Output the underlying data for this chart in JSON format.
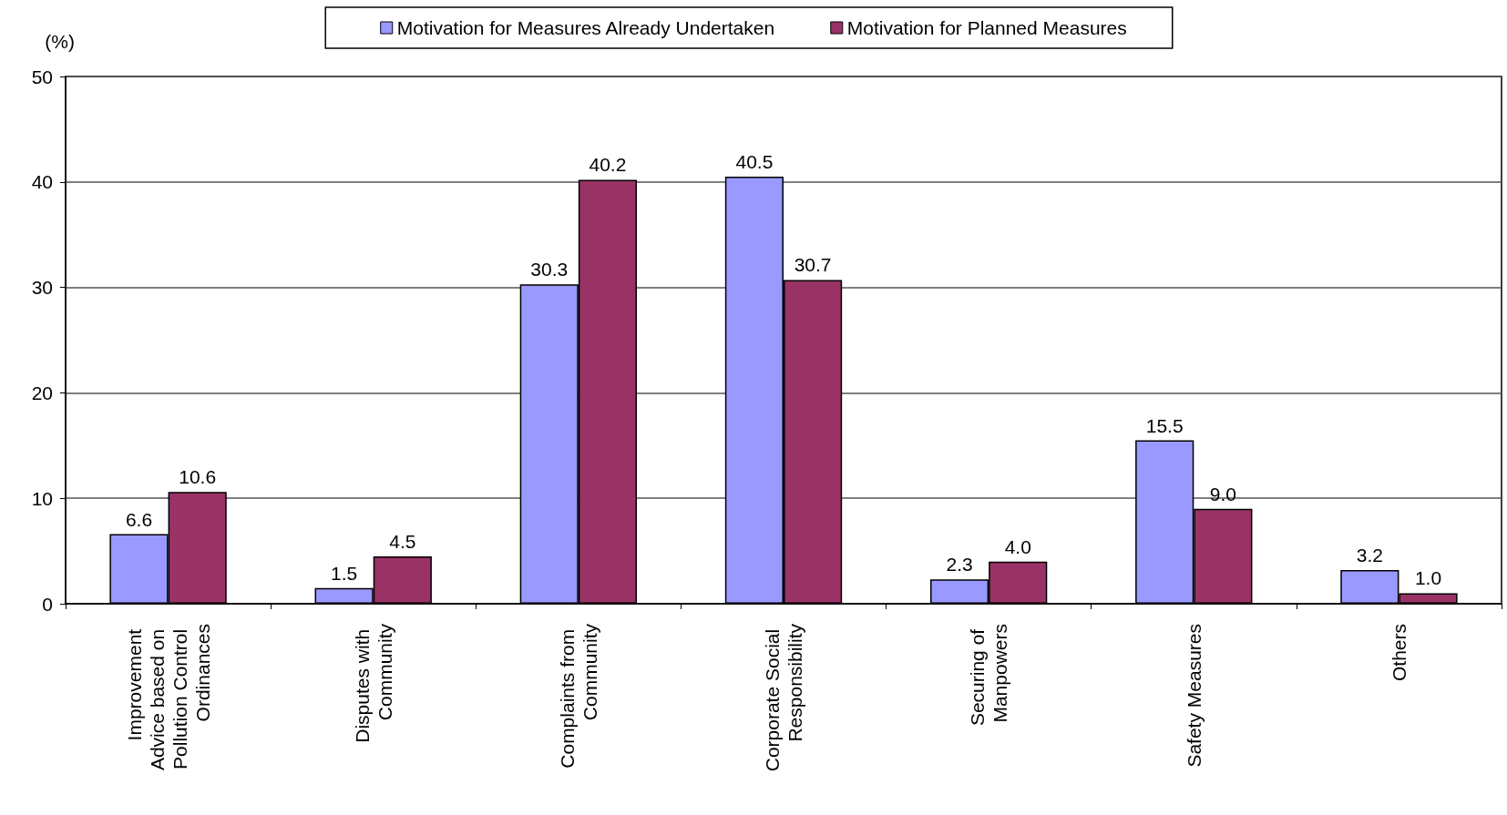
{
  "chart_data": {
    "type": "bar",
    "ylabel": "(%)",
    "categories": [
      "Improvement Advice based on Pollution Control Ordinances",
      "Disputes with Community",
      "Complaints from Community",
      "Corporate Social Responsibility",
      "Securing of Manpowers",
      "Safety Measures",
      "Others"
    ],
    "series": [
      {
        "name": "Motivation for Measures Already Undertaken",
        "color": "#9999ff",
        "values": [
          6.6,
          1.5,
          30.3,
          40.5,
          2.3,
          15.5,
          3.2
        ],
        "value_labels": [
          "6.6",
          "1.5",
          "30.3",
          "40.5",
          "2.3",
          "15.5",
          "3.2"
        ]
      },
      {
        "name": "Motivation for Planned Measures",
        "color": "#993366",
        "values": [
          10.6,
          4.5,
          40.2,
          30.7,
          4.0,
          9.0,
          1.0
        ],
        "value_labels": [
          "10.6",
          "4.5",
          "40.2",
          "30.7",
          "4.0",
          "9.0",
          "1.0"
        ]
      }
    ],
    "ylim": [
      0,
      50
    ],
    "yticks": [
      0,
      10,
      20,
      30,
      40,
      50
    ],
    "grid": "y",
    "legend": "top"
  }
}
